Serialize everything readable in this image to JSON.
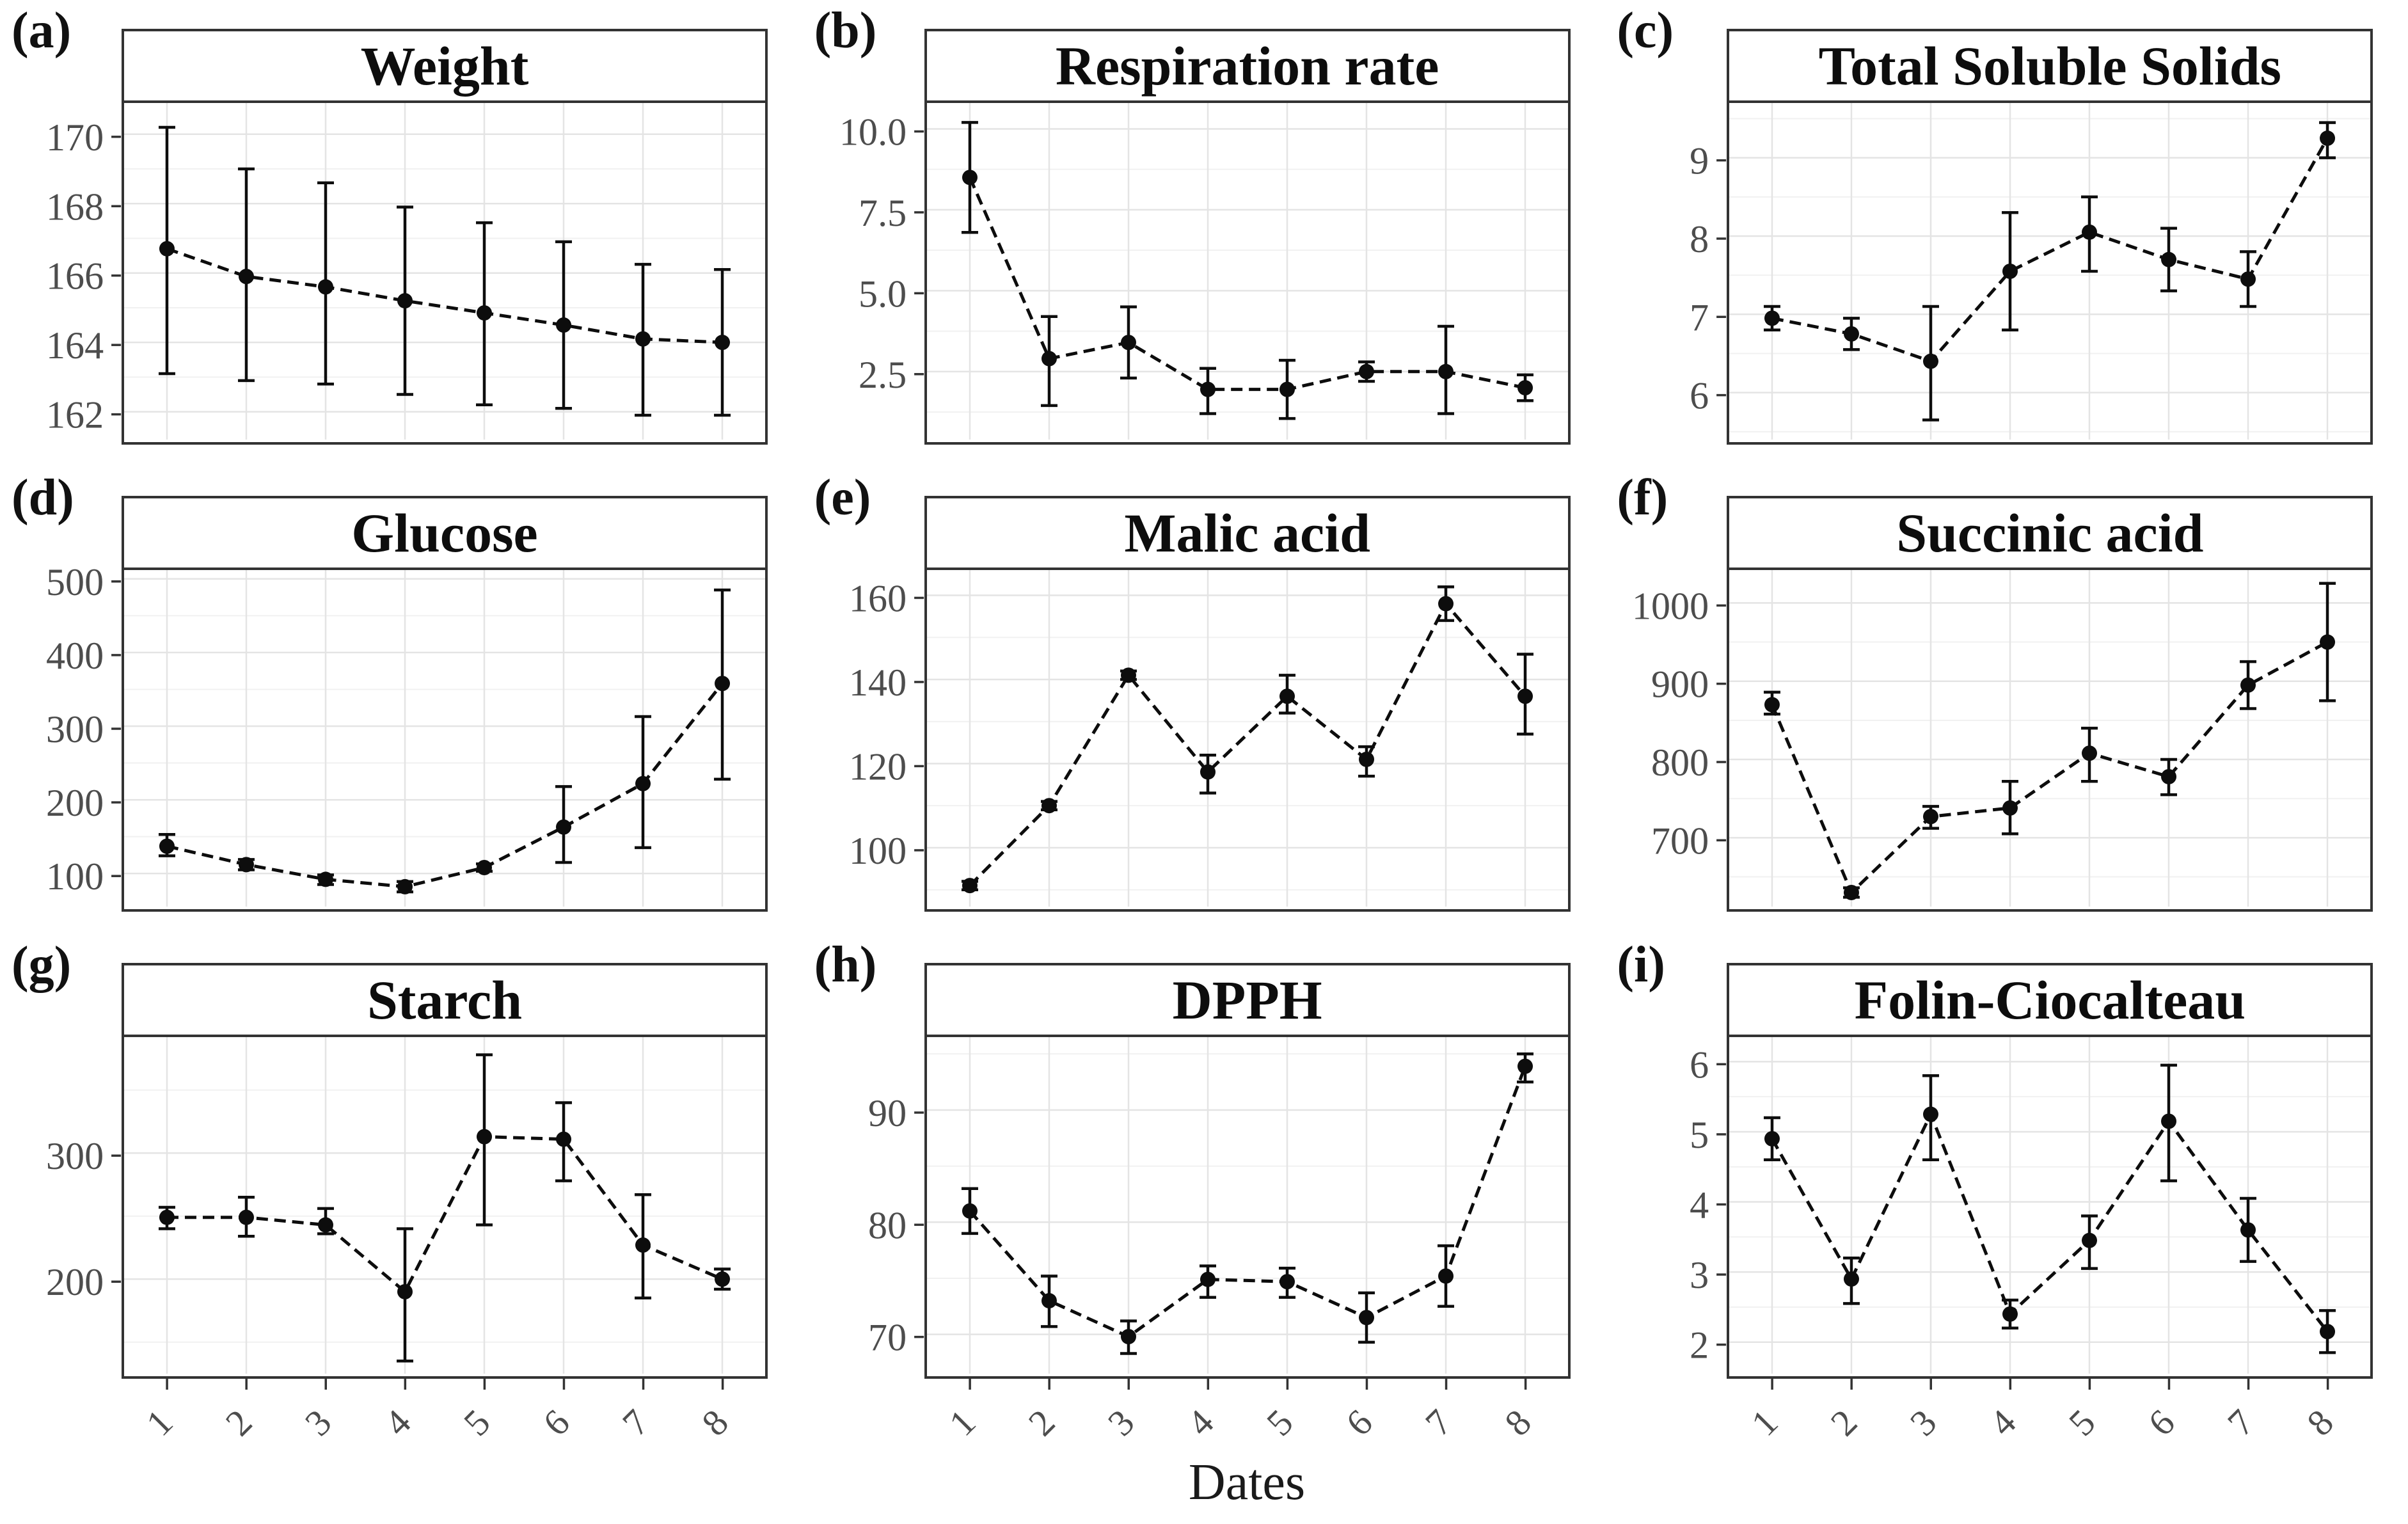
{
  "figure": {
    "xlabel": "Dates",
    "x_tick_labels": [
      "1",
      "2",
      "3",
      "4",
      "5",
      "6",
      "7",
      "8"
    ],
    "legend": "none",
    "grid": "major-and-minor-horizontal, major-vertical",
    "colors": {
      "strip_fill": "#d9d9d9",
      "panel_border": "#333333",
      "grid_major": "#e4e4e4",
      "grid_minor": "#f1f1f1",
      "axis_text": "#4d4d4d",
      "tick_mark": "#333333",
      "series": "#0d0d0d"
    }
  },
  "chart_data": [
    {
      "type": "line",
      "panel": "(a)",
      "title": "Weight",
      "x": [
        1,
        2,
        3,
        4,
        5,
        6,
        7,
        8
      ],
      "y": [
        166.7,
        165.9,
        165.6,
        165.2,
        164.85,
        164.5,
        164.1,
        164.0
      ],
      "err_low": [
        163.1,
        162.9,
        162.8,
        162.5,
        162.2,
        162.1,
        161.9,
        161.9
      ],
      "err_high": [
        170.2,
        169.0,
        168.6,
        167.9,
        167.45,
        166.9,
        166.25,
        166.1
      ],
      "y_ticks": [
        162,
        164,
        166,
        168,
        170
      ],
      "y_tick_labels": [
        "162",
        "164",
        "166",
        "168",
        "170"
      ],
      "ylim": [
        161.2,
        170.9
      ],
      "show_x_labels": false
    },
    {
      "type": "line",
      "panel": "(b)",
      "title": "Respiration rate",
      "x": [
        1,
        2,
        3,
        4,
        5,
        6,
        7,
        8
      ],
      "y": [
        8.5,
        2.9,
        3.4,
        1.95,
        1.95,
        2.5,
        2.5,
        2.0
      ],
      "err_low": [
        6.8,
        1.45,
        2.3,
        1.2,
        1.05,
        2.2,
        1.2,
        1.6
      ],
      "err_high": [
        10.2,
        4.2,
        4.5,
        2.6,
        2.85,
        2.8,
        3.9,
        2.4
      ],
      "y_ticks": [
        2.5,
        5.0,
        7.5,
        10.0
      ],
      "y_tick_labels": [
        "2.5",
        "5.0",
        "7.5",
        "10.0"
      ],
      "ylim": [
        0.4,
        10.8
      ],
      "show_x_labels": false
    },
    {
      "type": "line",
      "panel": "(c)",
      "title": "Total Soluble Solids",
      "x": [
        1,
        2,
        3,
        4,
        5,
        6,
        7,
        8
      ],
      "y": [
        6.95,
        6.75,
        6.4,
        7.55,
        8.05,
        7.7,
        7.45,
        9.25
      ],
      "err_low": [
        6.8,
        6.55,
        5.65,
        6.8,
        7.55,
        7.3,
        7.1,
        9.0
      ],
      "err_high": [
        7.1,
        6.95,
        7.1,
        8.3,
        8.5,
        8.1,
        7.8,
        9.45
      ],
      "y_ticks": [
        6,
        7,
        8,
        9
      ],
      "y_tick_labels": [
        "6",
        "7",
        "8",
        "9"
      ],
      "ylim": [
        5.4,
        9.7
      ],
      "show_x_labels": false
    },
    {
      "type": "line",
      "panel": "(d)",
      "title": "Glucose",
      "x": [
        1,
        2,
        3,
        4,
        5,
        6,
        7,
        8
      ],
      "y": [
        137,
        112,
        92,
        82,
        108,
        163,
        222,
        358
      ],
      "err_low": [
        124,
        105,
        85,
        75,
        103,
        115,
        135,
        228
      ],
      "err_high": [
        153,
        119,
        98,
        89,
        113,
        218,
        313,
        485
      ],
      "y_ticks": [
        100,
        200,
        300,
        400,
        500
      ],
      "y_tick_labels": [
        "100",
        "200",
        "300",
        "400",
        "500"
      ],
      "ylim": [
        55,
        512
      ],
      "show_x_labels": false
    },
    {
      "type": "line",
      "panel": "(e)",
      "title": "Malic acid",
      "x": [
        1,
        2,
        3,
        4,
        5,
        6,
        7,
        8
      ],
      "y": [
        91,
        110,
        141,
        118,
        136,
        121,
        158,
        136
      ],
      "err_low": [
        90,
        109,
        140,
        113,
        132,
        117,
        154,
        127
      ],
      "err_high": [
        92,
        111,
        142,
        122,
        141,
        124,
        162,
        146
      ],
      "y_ticks": [
        100,
        120,
        140,
        160
      ],
      "y_tick_labels": [
        "100",
        "120",
        "140",
        "160"
      ],
      "ylim": [
        86,
        166
      ],
      "show_x_labels": false
    },
    {
      "type": "line",
      "panel": "(f)",
      "title": "Succinic acid",
      "x": [
        1,
        2,
        3,
        4,
        5,
        6,
        7,
        8
      ],
      "y": [
        870,
        630,
        727,
        738,
        808,
        778,
        895,
        950
      ],
      "err_low": [
        858,
        624,
        712,
        705,
        772,
        755,
        865,
        875
      ],
      "err_high": [
        886,
        636,
        740,
        772,
        840,
        800,
        925,
        1025
      ],
      "y_ticks": [
        700,
        800,
        900,
        1000
      ],
      "y_tick_labels": [
        "700",
        "800",
        "900",
        "1000"
      ],
      "ylim": [
        612,
        1042
      ],
      "show_x_labels": false
    },
    {
      "type": "line",
      "panel": "(g)",
      "title": "Starch",
      "x": [
        1,
        2,
        3,
        4,
        5,
        6,
        7,
        8
      ],
      "y": [
        249,
        249,
        243,
        190,
        313,
        311,
        227,
        200
      ],
      "err_low": [
        240,
        234,
        236,
        135,
        243,
        278,
        185,
        192
      ],
      "err_high": [
        257,
        265,
        256,
        240,
        378,
        340,
        267,
        208
      ],
      "y_ticks": [
        200,
        300
      ],
      "y_tick_labels": [
        "200",
        "300"
      ],
      "ylim": [
        125,
        392
      ],
      "show_x_labels": true
    },
    {
      "type": "line",
      "panel": "(h)",
      "title": "DPPH",
      "x": [
        1,
        2,
        3,
        4,
        5,
        6,
        7,
        8
      ],
      "y": [
        81,
        73,
        69.8,
        74.9,
        74.7,
        71.5,
        75.2,
        93.9
      ],
      "err_low": [
        79,
        70.7,
        68.3,
        73.3,
        73.3,
        69.3,
        72.5,
        92.5
      ],
      "err_high": [
        83,
        75.2,
        71.2,
        76.1,
        75.9,
        73.7,
        77.9,
        95.0
      ],
      "y_ticks": [
        70,
        80,
        90
      ],
      "y_tick_labels": [
        "70",
        "80",
        "90"
      ],
      "ylim": [
        66.5,
        96.5
      ],
      "show_x_labels": true
    },
    {
      "type": "line",
      "panel": "(i)",
      "title": "Folin-Ciocalteau",
      "x": [
        1,
        2,
        3,
        4,
        5,
        6,
        7,
        8
      ],
      "y": [
        4.9,
        2.9,
        5.25,
        2.4,
        3.45,
        5.15,
        3.6,
        2.15
      ],
      "err_low": [
        4.6,
        2.55,
        4.6,
        2.2,
        3.05,
        4.3,
        3.15,
        1.85
      ],
      "err_high": [
        5.2,
        3.2,
        5.8,
        2.6,
        3.8,
        5.95,
        4.05,
        2.45
      ],
      "y_ticks": [
        2,
        3,
        4,
        5,
        6
      ],
      "y_tick_labels": [
        "2",
        "3",
        "4",
        "5",
        "6"
      ],
      "ylim": [
        1.55,
        6.35
      ],
      "show_x_labels": true
    }
  ]
}
